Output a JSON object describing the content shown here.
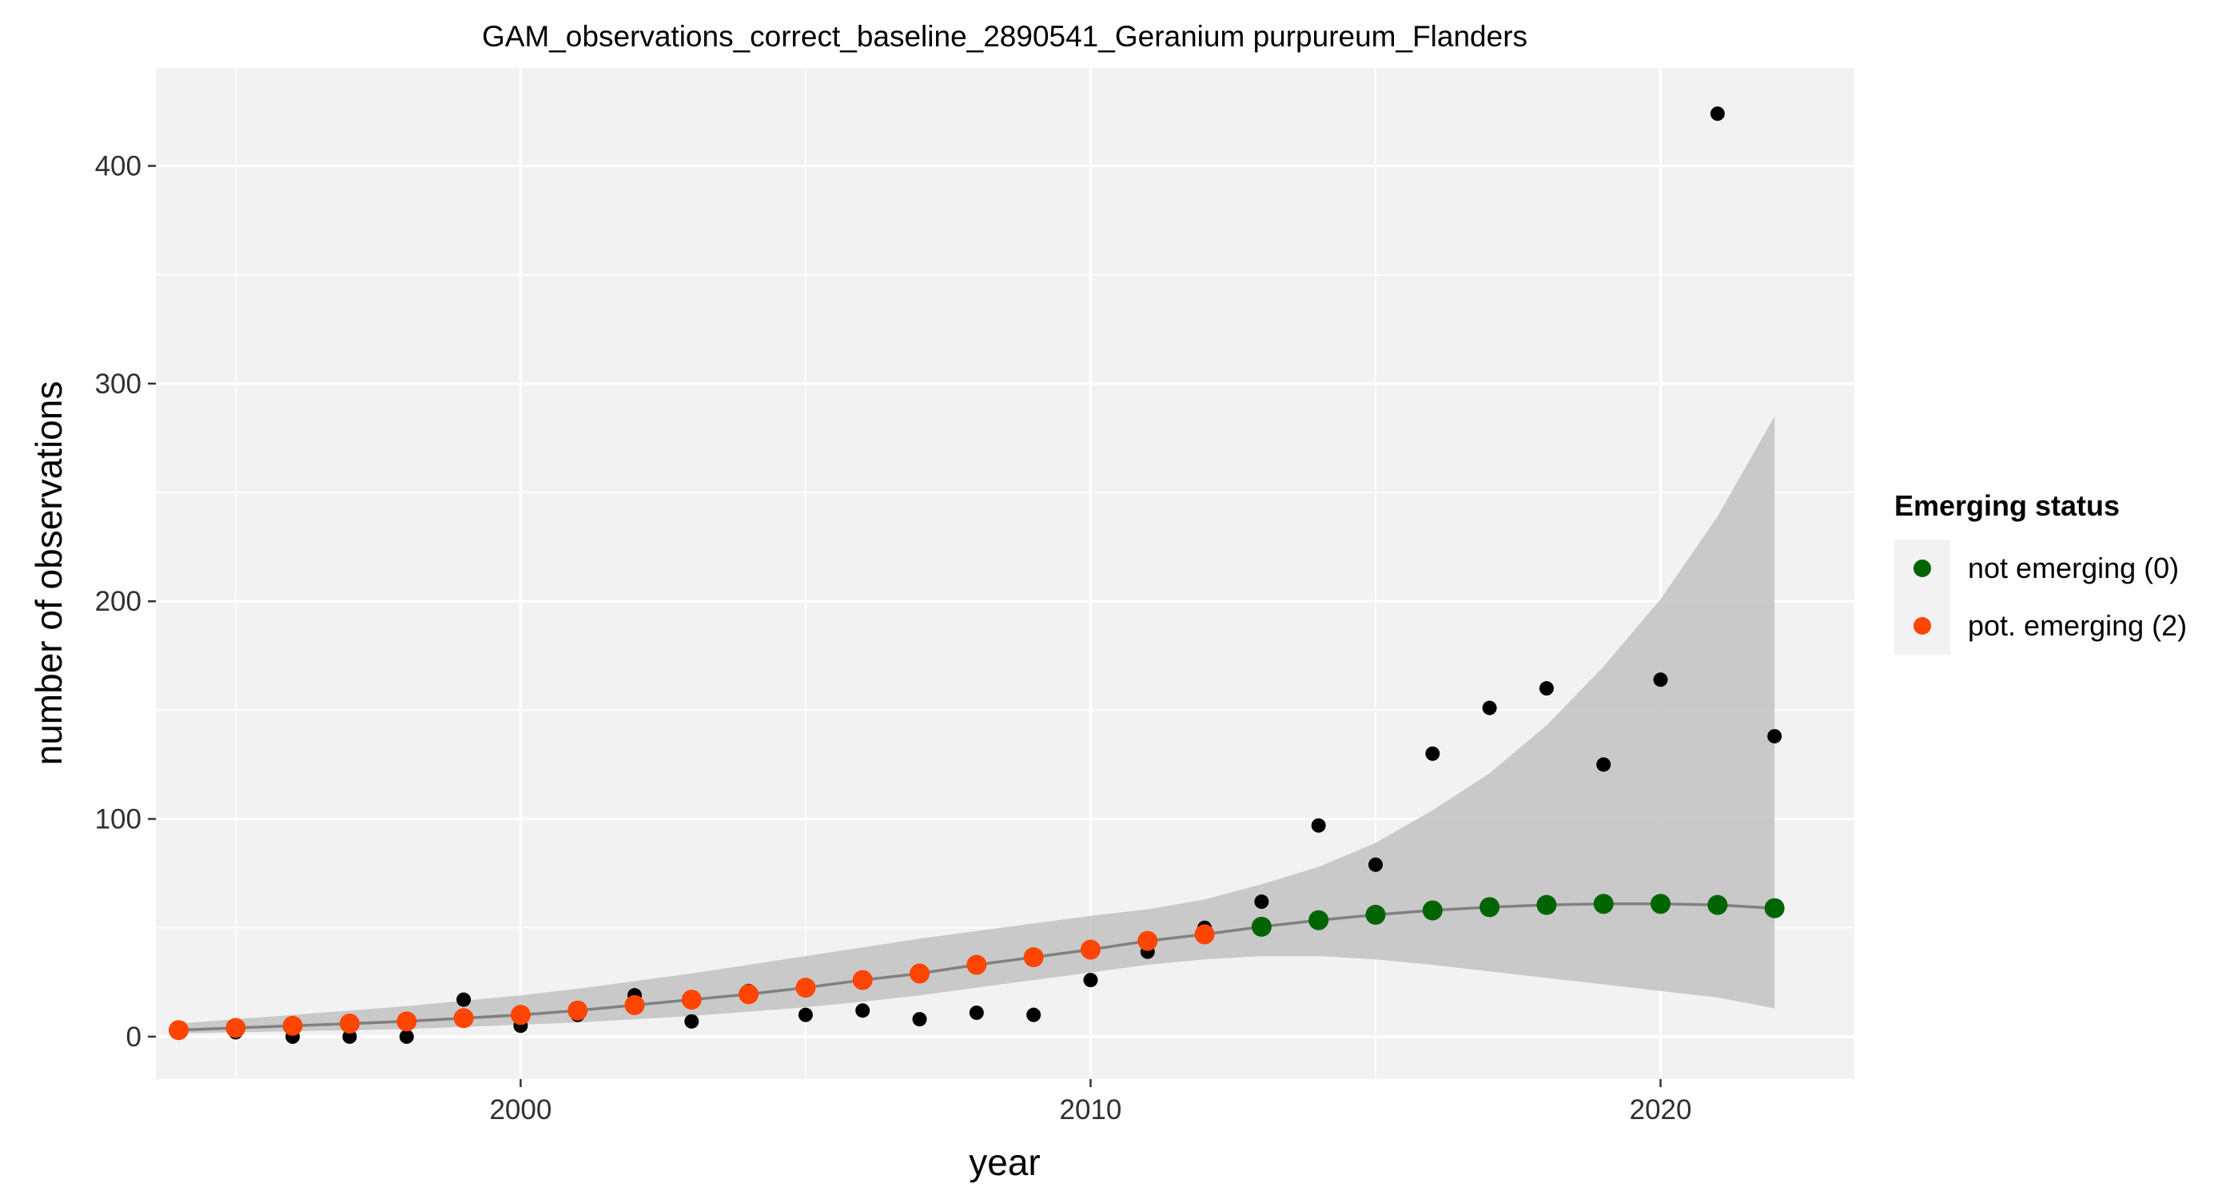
{
  "chart_data": {
    "type": "scatter",
    "title": "GAM_observations_correct_baseline_2890541_Geranium purpureum_Flanders",
    "xlabel": "year",
    "ylabel": "number of observations",
    "xlim": [
      1993.6,
      2023.4
    ],
    "ylim": [
      -19.5,
      445
    ],
    "x_ticks": [
      2000,
      2010,
      2020
    ],
    "x_tick_labels": [
      "2000",
      "2010",
      "2020"
    ],
    "y_ticks": [
      0,
      100,
      200,
      300,
      400
    ],
    "y_tick_labels": [
      "0",
      "100",
      "200",
      "300",
      "400"
    ],
    "x_minor_ticks": [
      1995,
      2005,
      2015
    ],
    "y_minor_ticks": [
      50,
      150,
      250,
      350
    ],
    "grid": true,
    "legend_position": "right",
    "legend": {
      "title": "Emerging status",
      "items": [
        {
          "label": "not emerging (0)",
          "color": "#006400"
        },
        {
          "label": "pot. emerging (2)",
          "color": "#FF4500"
        }
      ]
    },
    "colors": {
      "panel_background": "#F2F2F2",
      "grid": "#FFFFFF",
      "ribbon": "#BEBEBE",
      "fit_line": "#808080",
      "observed_points": "#000000",
      "not_emerging": "#006400",
      "pot_emerging": "#FF4500"
    },
    "observed": {
      "x": [
        1994,
        1995,
        1996,
        1997,
        1998,
        1999,
        2000,
        2001,
        2002,
        2003,
        2004,
        2005,
        2006,
        2007,
        2008,
        2009,
        2010,
        2011,
        2012,
        2013,
        2014,
        2015,
        2016,
        2017,
        2018,
        2019,
        2020,
        2021,
        2022
      ],
      "y": [
        3,
        2,
        0,
        0,
        0,
        17,
        5,
        10,
        19,
        7,
        21,
        10,
        12,
        8,
        11,
        10,
        26,
        39,
        50,
        62,
        97,
        79,
        130,
        151,
        160,
        125,
        164,
        424,
        138
      ]
    },
    "fit": {
      "x": [
        1994,
        1995,
        1996,
        1997,
        1998,
        1999,
        2000,
        2001,
        2002,
        2003,
        2004,
        2005,
        2006,
        2007,
        2008,
        2009,
        2010,
        2011,
        2012,
        2013,
        2014,
        2015,
        2016,
        2017,
        2018,
        2019,
        2020,
        2021,
        2022
      ],
      "y": [
        3,
        4,
        5,
        6,
        7,
        8.5,
        10,
        12,
        14.5,
        17,
        19.5,
        22.5,
        26,
        29,
        33,
        36.5,
        40,
        44,
        47,
        50.5,
        53.5,
        56,
        58,
        59.5,
        60.5,
        61,
        61,
        60.5,
        59
      ],
      "lower": [
        1.5,
        2,
        2.5,
        3,
        3.5,
        4.5,
        5.5,
        6.5,
        8,
        9.5,
        11.5,
        13.5,
        16,
        19,
        22.5,
        26,
        29.5,
        33,
        35.5,
        37,
        37,
        35.5,
        33,
        30,
        27,
        24,
        21,
        18,
        13
      ],
      "upper": [
        6,
        8,
        10,
        12,
        14,
        16.5,
        19,
        22,
        25.5,
        29,
        33,
        37,
        41,
        45,
        48.5,
        52,
        55.5,
        58.5,
        63,
        70,
        78,
        89,
        104,
        121,
        143,
        170,
        201,
        239,
        285
      ],
      "status": [
        "pot. emerging (2)",
        "pot. emerging (2)",
        "pot. emerging (2)",
        "pot. emerging (2)",
        "pot. emerging (2)",
        "pot. emerging (2)",
        "pot. emerging (2)",
        "pot. emerging (2)",
        "pot. emerging (2)",
        "pot. emerging (2)",
        "pot. emerging (2)",
        "pot. emerging (2)",
        "pot. emerging (2)",
        "pot. emerging (2)",
        "pot. emerging (2)",
        "pot. emerging (2)",
        "pot. emerging (2)",
        "pot. emerging (2)",
        "pot. emerging (2)",
        "not emerging (0)",
        "not emerging (0)",
        "not emerging (0)",
        "not emerging (0)",
        "not emerging (0)",
        "not emerging (0)",
        "not emerging (0)",
        "not emerging (0)",
        "not emerging (0)",
        "not emerging (0)"
      ]
    }
  }
}
